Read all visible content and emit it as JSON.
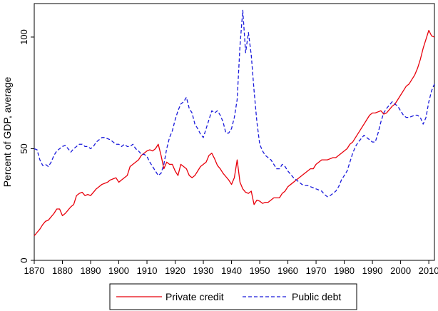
{
  "chart_data": {
    "type": "line",
    "title": "",
    "xlabel": "",
    "ylabel": "Percent of GDP, average",
    "xlim": [
      1870,
      2012
    ],
    "ylim": [
      0,
      115
    ],
    "x_ticks": [
      "1870",
      "1880",
      "1890",
      "1900",
      "1910",
      "1920",
      "1930",
      "1940",
      "1950",
      "1960",
      "1970",
      "1980",
      "1990",
      "2000",
      "2010"
    ],
    "x_tick_values": [
      1870,
      1880,
      1890,
      1900,
      1910,
      1920,
      1930,
      1940,
      1950,
      1960,
      1970,
      1980,
      1990,
      2000,
      2010
    ],
    "y_ticks": [
      "0",
      "50",
      "100"
    ],
    "y_tick_values": [
      0,
      50,
      100
    ],
    "grid": false,
    "legend_position": "bottom",
    "series": [
      {
        "name": "Private credit",
        "color": "#e8000b",
        "dash": "solid",
        "points": [
          [
            1870,
            11
          ],
          [
            1871,
            12.5
          ],
          [
            1872,
            14
          ],
          [
            1873,
            16
          ],
          [
            1874,
            17.5
          ],
          [
            1875,
            18
          ],
          [
            1876,
            19.5
          ],
          [
            1877,
            21
          ],
          [
            1878,
            23
          ],
          [
            1879,
            23
          ],
          [
            1880,
            20
          ],
          [
            1881,
            21
          ],
          [
            1882,
            22.5
          ],
          [
            1883,
            24
          ],
          [
            1884,
            25
          ],
          [
            1885,
            29
          ],
          [
            1886,
            30
          ],
          [
            1887,
            30.5
          ],
          [
            1888,
            29
          ],
          [
            1889,
            29.5
          ],
          [
            1890,
            29
          ],
          [
            1891,
            30.5
          ],
          [
            1892,
            32
          ],
          [
            1893,
            33
          ],
          [
            1894,
            34
          ],
          [
            1895,
            34.5
          ],
          [
            1896,
            35
          ],
          [
            1897,
            36
          ],
          [
            1898,
            36.5
          ],
          [
            1899,
            37
          ],
          [
            1900,
            35
          ],
          [
            1901,
            36
          ],
          [
            1902,
            37
          ],
          [
            1903,
            38
          ],
          [
            1904,
            42
          ],
          [
            1905,
            43
          ],
          [
            1906,
            44
          ],
          [
            1907,
            45
          ],
          [
            1908,
            47
          ],
          [
            1909,
            48
          ],
          [
            1910,
            49
          ],
          [
            1911,
            49.5
          ],
          [
            1912,
            49
          ],
          [
            1913,
            50
          ],
          [
            1914,
            52
          ],
          [
            1915,
            47
          ],
          [
            1916,
            41
          ],
          [
            1917,
            44
          ],
          [
            1918,
            43
          ],
          [
            1919,
            43
          ],
          [
            1920,
            40
          ],
          [
            1921,
            38
          ],
          [
            1922,
            43
          ],
          [
            1923,
            42
          ],
          [
            1924,
            41
          ],
          [
            1925,
            38
          ],
          [
            1926,
            37
          ],
          [
            1927,
            38
          ],
          [
            1928,
            40
          ],
          [
            1929,
            42
          ],
          [
            1930,
            43
          ],
          [
            1931,
            44
          ],
          [
            1932,
            47
          ],
          [
            1933,
            48
          ],
          [
            1934,
            45.5
          ],
          [
            1935,
            42.5
          ],
          [
            1936,
            41
          ],
          [
            1937,
            39
          ],
          [
            1938,
            37.5
          ],
          [
            1939,
            36
          ],
          [
            1940,
            34
          ],
          [
            1941,
            37
          ],
          [
            1942,
            45
          ],
          [
            1943,
            35
          ],
          [
            1944,
            32
          ],
          [
            1945,
            30.5
          ],
          [
            1946,
            30
          ],
          [
            1947,
            31
          ],
          [
            1948,
            25
          ],
          [
            1949,
            27
          ],
          [
            1950,
            26.5
          ],
          [
            1951,
            25.5
          ],
          [
            1952,
            26
          ],
          [
            1953,
            26
          ],
          [
            1954,
            27
          ],
          [
            1955,
            28
          ],
          [
            1956,
            28
          ],
          [
            1957,
            28
          ],
          [
            1958,
            30
          ],
          [
            1959,
            31
          ],
          [
            1960,
            33
          ],
          [
            1961,
            34
          ],
          [
            1962,
            35
          ],
          [
            1963,
            36
          ],
          [
            1964,
            37
          ],
          [
            1965,
            38
          ],
          [
            1966,
            39
          ],
          [
            1967,
            40
          ],
          [
            1968,
            41
          ],
          [
            1969,
            41
          ],
          [
            1970,
            43
          ],
          [
            1971,
            44
          ],
          [
            1972,
            45
          ],
          [
            1973,
            45
          ],
          [
            1974,
            45
          ],
          [
            1975,
            45.5
          ],
          [
            1976,
            46
          ],
          [
            1977,
            46
          ],
          [
            1978,
            47
          ],
          [
            1979,
            48
          ],
          [
            1980,
            49
          ],
          [
            1981,
            50
          ],
          [
            1982,
            52
          ],
          [
            1983,
            53
          ],
          [
            1984,
            55
          ],
          [
            1985,
            57
          ],
          [
            1986,
            59
          ],
          [
            1987,
            61
          ],
          [
            1988,
            63
          ],
          [
            1989,
            65
          ],
          [
            1990,
            66
          ],
          [
            1991,
            66
          ],
          [
            1992,
            66.5
          ],
          [
            1993,
            67
          ],
          [
            1994,
            65.5
          ],
          [
            1995,
            66
          ],
          [
            1996,
            67.5
          ],
          [
            1997,
            69
          ],
          [
            1998,
            70
          ],
          [
            1999,
            72
          ],
          [
            2000,
            74
          ],
          [
            2001,
            76
          ],
          [
            2002,
            78
          ],
          [
            2003,
            79
          ],
          [
            2004,
            81
          ],
          [
            2005,
            83
          ],
          [
            2006,
            86
          ],
          [
            2007,
            90
          ],
          [
            2008,
            95
          ],
          [
            2009,
            99
          ],
          [
            2010,
            103
          ],
          [
            2011,
            100.5
          ],
          [
            2012,
            100
          ]
        ]
      },
      {
        "name": "Public debt",
        "color": "#1a1adb",
        "dash": "dashed",
        "points": [
          [
            1870,
            50
          ],
          [
            1871,
            49.5
          ],
          [
            1872,
            45
          ],
          [
            1873,
            42.5
          ],
          [
            1874,
            43
          ],
          [
            1875,
            42
          ],
          [
            1876,
            44
          ],
          [
            1877,
            47
          ],
          [
            1878,
            49
          ],
          [
            1879,
            50
          ],
          [
            1880,
            51
          ],
          [
            1881,
            51.5
          ],
          [
            1882,
            50
          ],
          [
            1883,
            48.5
          ],
          [
            1884,
            50
          ],
          [
            1885,
            51
          ],
          [
            1886,
            52
          ],
          [
            1887,
            52
          ],
          [
            1888,
            51
          ],
          [
            1889,
            51
          ],
          [
            1890,
            50
          ],
          [
            1891,
            51
          ],
          [
            1892,
            53
          ],
          [
            1893,
            54
          ],
          [
            1894,
            55
          ],
          [
            1895,
            55
          ],
          [
            1896,
            54.5
          ],
          [
            1897,
            54
          ],
          [
            1898,
            53
          ],
          [
            1899,
            52
          ],
          [
            1900,
            52
          ],
          [
            1901,
            51
          ],
          [
            1902,
            52
          ],
          [
            1903,
            51
          ],
          [
            1904,
            51
          ],
          [
            1905,
            52
          ],
          [
            1906,
            50
          ],
          [
            1907,
            49
          ],
          [
            1908,
            47.5
          ],
          [
            1909,
            47.5
          ],
          [
            1910,
            46.5
          ],
          [
            1911,
            44
          ],
          [
            1912,
            42
          ],
          [
            1913,
            40
          ],
          [
            1914,
            38
          ],
          [
            1915,
            39
          ],
          [
            1916,
            43
          ],
          [
            1917,
            50
          ],
          [
            1918,
            55
          ],
          [
            1919,
            58
          ],
          [
            1920,
            63
          ],
          [
            1921,
            67
          ],
          [
            1922,
            70
          ],
          [
            1923,
            71
          ],
          [
            1924,
            73
          ],
          [
            1925,
            68
          ],
          [
            1926,
            66
          ],
          [
            1927,
            61
          ],
          [
            1928,
            59
          ],
          [
            1929,
            56.5
          ],
          [
            1930,
            55
          ],
          [
            1931,
            59
          ],
          [
            1932,
            63
          ],
          [
            1933,
            67
          ],
          [
            1934,
            66
          ],
          [
            1935,
            67
          ],
          [
            1936,
            65
          ],
          [
            1937,
            62
          ],
          [
            1938,
            57
          ],
          [
            1939,
            57
          ],
          [
            1940,
            59
          ],
          [
            1941,
            64
          ],
          [
            1942,
            72
          ],
          [
            1943,
            96
          ],
          [
            1944,
            112
          ],
          [
            1945,
            93
          ],
          [
            1946,
            102
          ],
          [
            1947,
            92
          ],
          [
            1948,
            76
          ],
          [
            1949,
            62
          ],
          [
            1950,
            52
          ],
          [
            1951,
            49
          ],
          [
            1952,
            47
          ],
          [
            1953,
            46
          ],
          [
            1954,
            45
          ],
          [
            1955,
            43
          ],
          [
            1956,
            41
          ],
          [
            1957,
            41
          ],
          [
            1958,
            43
          ],
          [
            1959,
            42
          ],
          [
            1960,
            40
          ],
          [
            1961,
            38.5
          ],
          [
            1962,
            37
          ],
          [
            1963,
            36
          ],
          [
            1964,
            35
          ],
          [
            1965,
            34
          ],
          [
            1966,
            33.5
          ],
          [
            1967,
            33.5
          ],
          [
            1968,
            33
          ],
          [
            1969,
            32.5
          ],
          [
            1970,
            32
          ],
          [
            1971,
            31.5
          ],
          [
            1972,
            31
          ],
          [
            1973,
            29.5
          ],
          [
            1974,
            28.5
          ],
          [
            1975,
            29
          ],
          [
            1976,
            30
          ],
          [
            1977,
            31
          ],
          [
            1978,
            33
          ],
          [
            1979,
            36
          ],
          [
            1980,
            38
          ],
          [
            1981,
            40
          ],
          [
            1982,
            44
          ],
          [
            1983,
            48
          ],
          [
            1984,
            51
          ],
          [
            1985,
            53
          ],
          [
            1986,
            54.5
          ],
          [
            1987,
            56
          ],
          [
            1988,
            55
          ],
          [
            1989,
            54
          ],
          [
            1990,
            53
          ],
          [
            1991,
            53
          ],
          [
            1992,
            57
          ],
          [
            1993,
            62
          ],
          [
            1994,
            66
          ],
          [
            1995,
            68
          ],
          [
            1996,
            69.5
          ],
          [
            1997,
            71
          ],
          [
            1998,
            70
          ],
          [
            1999,
            69
          ],
          [
            2000,
            67
          ],
          [
            2001,
            65
          ],
          [
            2002,
            64
          ],
          [
            2003,
            64
          ],
          [
            2004,
            64.5
          ],
          [
            2005,
            65
          ],
          [
            2006,
            65
          ],
          [
            2007,
            64
          ],
          [
            2008,
            61
          ],
          [
            2009,
            64
          ],
          [
            2010,
            71
          ],
          [
            2011,
            76
          ],
          [
            2012,
            79
          ]
        ]
      }
    ]
  }
}
